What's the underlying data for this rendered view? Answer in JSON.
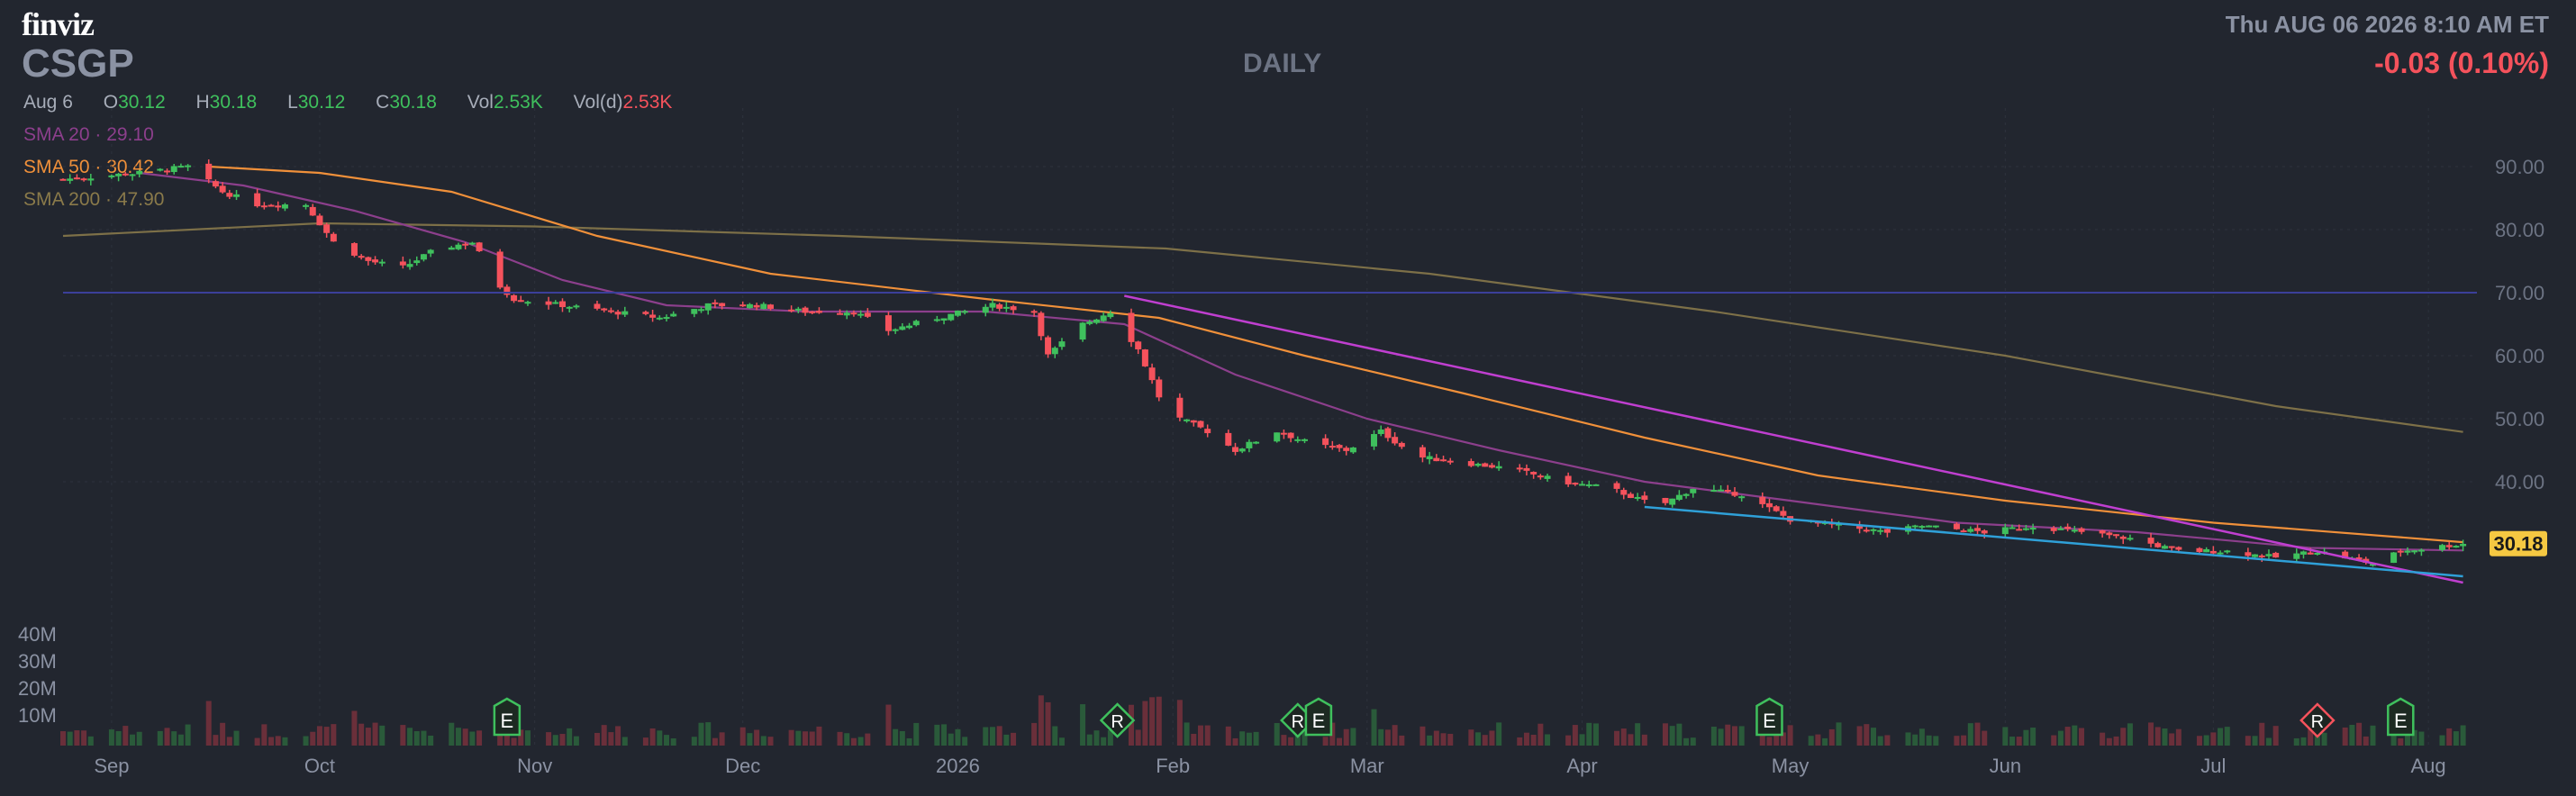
{
  "header": {
    "logo": "finviz",
    "ticker": "CSGP",
    "period": "DAILY",
    "datetime": "Thu AUG 06 2026 8:10 AM ET",
    "change": "-0.03 (0.10%)"
  },
  "ohlc": {
    "date": "Aug 6",
    "open_label": "O",
    "open": "30.12",
    "high_label": "H",
    "high": "30.18",
    "low_label": "L",
    "low": "30.12",
    "close_label": "C",
    "close": "30.18",
    "vol_label": "Vol",
    "vol": "2.53K",
    "vold_label": "Vol(d)",
    "vold": "2.53K"
  },
  "indicators": {
    "sma20": "SMA 20 · 29.10",
    "sma50": "SMA 50 · 30.42",
    "sma200": "SMA 200 · 47.90"
  },
  "colors": {
    "up": "#3fc05d",
    "down": "#f5525c",
    "sma20": "#8c3f8c",
    "sma50": "#f0903a",
    "sma200": "#7d7048",
    "trend_upper": "#c03fd0",
    "trend_lower": "#2fa0d8",
    "hline": "#3b3f9a",
    "price_tag": "#f5c842"
  },
  "chart_data": {
    "type": "candlestick",
    "x_labels": [
      "Sep",
      "Oct",
      "Nov",
      "Dec",
      "2026",
      "Feb",
      "Mar",
      "Apr",
      "May",
      "Jun",
      "Jul",
      "Aug"
    ],
    "y_ticks": [
      "90.00",
      "80.00",
      "70.00",
      "60.00",
      "50.00",
      "40.00"
    ],
    "y_range": [
      25,
      95
    ],
    "volume_ticks": [
      "40M",
      "30M",
      "20M",
      "10M"
    ],
    "last_price": "30.18",
    "horizontal_line": 70.0,
    "events": [
      {
        "label": "E",
        "date": "2025-10-28",
        "kind": "earnings"
      },
      {
        "label": "R",
        "date": "2026-01-24",
        "kind": "rating"
      },
      {
        "label": "R",
        "date": "2026-02-19",
        "kind": "rating"
      },
      {
        "label": "E",
        "date": "2026-02-22",
        "kind": "earnings"
      },
      {
        "label": "E",
        "date": "2026-04-28",
        "kind": "earnings"
      },
      {
        "label": "R",
        "date": "2026-07-16",
        "kind": "rating"
      },
      {
        "label": "E",
        "date": "2026-07-28",
        "kind": "earnings"
      }
    ],
    "price_path": [
      [
        "2025-08-25",
        88
      ],
      [
        "2025-09-05",
        89
      ],
      [
        "2025-09-12",
        90
      ],
      [
        "2025-09-17",
        86
      ],
      [
        "2025-09-22",
        84
      ],
      [
        "2025-09-29",
        84
      ],
      [
        "2025-10-03",
        78
      ],
      [
        "2025-10-08",
        75
      ],
      [
        "2025-10-13",
        74
      ],
      [
        "2025-10-18",
        77
      ],
      [
        "2025-10-23",
        78
      ],
      [
        "2025-10-27",
        71
      ],
      [
        "2025-10-29",
        69
      ],
      [
        "2025-11-05",
        68
      ],
      [
        "2025-11-12",
        67
      ],
      [
        "2025-11-19",
        66
      ],
      [
        "2025-11-26",
        68
      ],
      [
        "2025-12-03",
        68
      ],
      [
        "2025-12-10",
        67
      ],
      [
        "2025-12-17",
        67
      ],
      [
        "2025-12-22",
        64
      ],
      [
        "2025-12-29",
        66
      ],
      [
        "2026-01-06",
        68
      ],
      [
        "2026-01-12",
        67
      ],
      [
        "2026-01-14",
        60
      ],
      [
        "2026-01-19",
        65
      ],
      [
        "2026-01-23",
        67
      ],
      [
        "2026-01-27",
        61
      ],
      [
        "2026-01-31",
        51
      ],
      [
        "2026-02-06",
        48
      ],
      [
        "2026-02-10",
        45
      ],
      [
        "2026-02-16",
        48
      ],
      [
        "2026-02-21",
        46
      ],
      [
        "2026-02-26",
        45
      ],
      [
        "2026-03-03",
        48
      ],
      [
        "2026-03-08",
        44
      ],
      [
        "2026-03-15",
        43
      ],
      [
        "2026-03-22",
        42
      ],
      [
        "2026-03-29",
        40
      ],
      [
        "2026-04-05",
        39
      ],
      [
        "2026-04-12",
        36
      ],
      [
        "2026-04-17",
        39
      ],
      [
        "2026-04-24",
        38
      ],
      [
        "2026-05-01",
        34
      ],
      [
        "2026-05-08",
        33
      ],
      [
        "2026-05-15",
        32
      ],
      [
        "2026-05-20",
        33
      ],
      [
        "2026-05-29",
        32
      ],
      [
        "2026-06-05",
        33
      ],
      [
        "2026-06-12",
        32
      ],
      [
        "2026-06-19",
        31
      ],
      [
        "2026-06-26",
        29
      ],
      [
        "2026-07-03",
        29
      ],
      [
        "2026-07-10",
        28
      ],
      [
        "2026-07-16",
        29
      ],
      [
        "2026-07-24",
        27
      ],
      [
        "2026-07-28",
        29
      ],
      [
        "2026-08-06",
        30.18
      ]
    ],
    "sma20_path": [
      [
        "2025-09-05",
        89
      ],
      [
        "2025-09-20",
        87
      ],
      [
        "2025-10-06",
        83
      ],
      [
        "2025-10-22",
        78
      ],
      [
        "2025-11-05",
        72
      ],
      [
        "2025-11-20",
        68
      ],
      [
        "2025-12-10",
        67
      ],
      [
        "2026-01-05",
        67
      ],
      [
        "2026-01-25",
        65
      ],
      [
        "2026-02-10",
        57
      ],
      [
        "2026-03-01",
        50
      ],
      [
        "2026-03-20",
        45
      ],
      [
        "2026-04-10",
        40
      ],
      [
        "2026-05-01",
        37
      ],
      [
        "2026-05-25",
        33.5
      ],
      [
        "2026-06-20",
        32
      ],
      [
        "2026-07-15",
        29.5
      ],
      [
        "2026-08-06",
        29.1
      ]
    ],
    "sma50_path": [
      [
        "2025-09-15",
        90
      ],
      [
        "2025-10-01",
        89
      ],
      [
        "2025-10-20",
        86
      ],
      [
        "2025-11-10",
        79
      ],
      [
        "2025-12-05",
        73
      ],
      [
        "2026-01-05",
        69
      ],
      [
        "2026-01-30",
        66
      ],
      [
        "2026-02-20",
        60
      ],
      [
        "2026-03-15",
        54
      ],
      [
        "2026-04-10",
        47
      ],
      [
        "2026-05-05",
        41
      ],
      [
        "2026-06-01",
        37
      ],
      [
        "2026-07-01",
        33.5
      ],
      [
        "2026-08-06",
        30.42
      ]
    ],
    "sma200_path": [
      [
        "2025-08-25",
        79
      ],
      [
        "2025-10-01",
        81
      ],
      [
        "2025-11-01",
        80.5
      ],
      [
        "2025-12-15",
        79
      ],
      [
        "2026-01-31",
        77
      ],
      [
        "2026-03-10",
        73
      ],
      [
        "2026-04-20",
        67
      ],
      [
        "2026-06-01",
        60
      ],
      [
        "2026-07-10",
        52
      ],
      [
        "2026-08-06",
        47.9
      ]
    ],
    "trendlines": [
      {
        "name": "upper",
        "from": [
          "2026-01-25",
          69.5
        ],
        "to": [
          "2026-08-06",
          24
        ]
      },
      {
        "name": "lower",
        "from": [
          "2026-04-10",
          36
        ],
        "to": [
          "2026-08-06",
          25
        ]
      }
    ]
  }
}
